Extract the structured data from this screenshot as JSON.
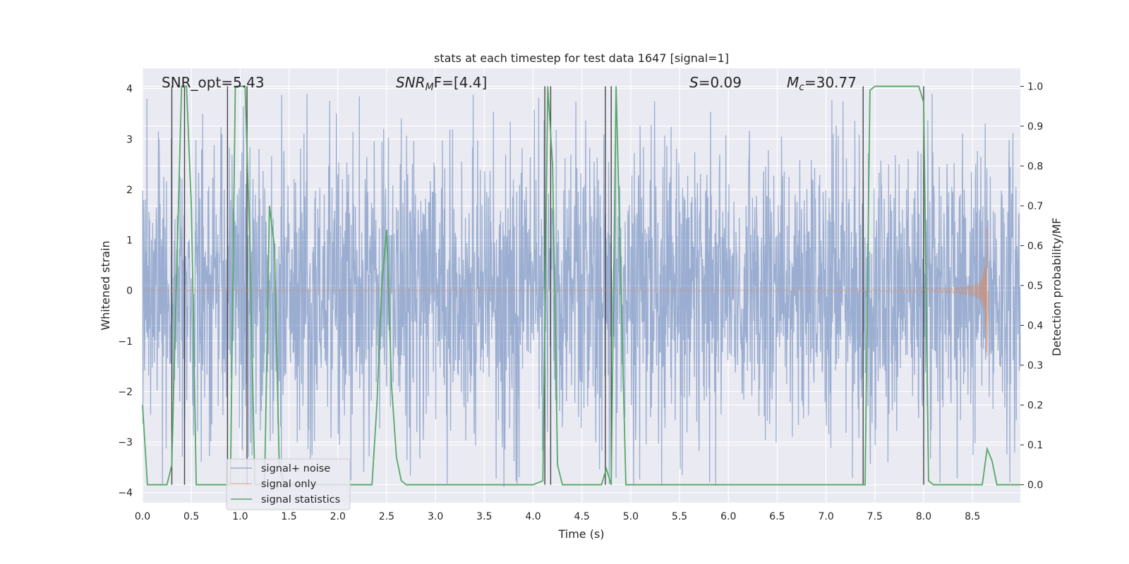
{
  "chart_data": {
    "type": "line",
    "title": "stats at each timestep for test data 1647 [signal=1]",
    "xlabel": "Time (s)",
    "ylabel": "Whitened strain",
    "y2label": "Detection probability/MF",
    "xlim": [
      0.0,
      8.99
    ],
    "ylim": [
      -4.2,
      4.4
    ],
    "y2lim": [
      -0.045,
      1.045
    ],
    "x_ticks": [
      "0.0",
      "0.5",
      "1.0",
      "1.5",
      "2.0",
      "2.5",
      "3.0",
      "3.5",
      "4.0",
      "4.5",
      "5.0",
      "5.5",
      "6.0",
      "6.5",
      "7.0",
      "7.5",
      "8.0",
      "8.5"
    ],
    "x_tick_values": [
      0,
      0.5,
      1,
      1.5,
      2,
      2.5,
      3,
      3.5,
      4,
      4.5,
      5,
      5.5,
      6,
      6.5,
      7,
      7.5,
      8,
      8.5
    ],
    "y_ticks": [
      "−4",
      "−3",
      "−2",
      "−1",
      "0",
      "1",
      "2",
      "3",
      "4"
    ],
    "y_tick_values": [
      -4,
      -3,
      -2,
      -1,
      0,
      1,
      2,
      3,
      4
    ],
    "y2_ticks": [
      "0.0",
      "0.1",
      "0.2",
      "0.3",
      "0.4",
      "0.5",
      "0.6",
      "0.7",
      "0.8",
      "0.9",
      "1.0"
    ],
    "y2_tick_values": [
      0,
      0.1,
      0.2,
      0.3,
      0.4,
      0.5,
      0.6,
      0.7,
      0.8,
      0.9,
      1.0
    ],
    "grid": true,
    "legend_location": "bottom-left",
    "legend": [
      "signal+ noise",
      "signal only",
      "signal statistics"
    ],
    "annotations": {
      "snr_opt": "SNR_opt=5.43",
      "snr_mf_prefix": "SNR",
      "snr_mf_sub": "M",
      "snr_mf_suffix": "F=[4.4]",
      "s_prefix": "S",
      "s_suffix": "=0.09",
      "mc_prefix": "M",
      "mc_sub": "c",
      "mc_suffix": "=30.77"
    },
    "series": [
      {
        "name": "signal+ noise",
        "color": "#4c72b0",
        "description": "whitened strain noise, approx. Gaussian sigma 1.0 with peaks up to about 3.9",
        "noise_sigma": 1.0,
        "noise_peak": 3.9
      },
      {
        "name": "signal only",
        "color": "#dd8452",
        "description": "chirp waveform merging near t=8.65s",
        "merger_time": 8.65,
        "peak_amplitude": 1.45,
        "trough_amplitude": -1.3
      },
      {
        "name": "signal statistics",
        "color": "#55a868",
        "axis": "right",
        "x": [
          0.0,
          0.05,
          0.25,
          0.3,
          0.33,
          0.4,
          0.45,
          0.5,
          0.55,
          0.75,
          0.9,
          0.95,
          1.0,
          1.05,
          1.1,
          1.15,
          1.25,
          1.3,
          1.35,
          1.4,
          1.45,
          1.5,
          1.55,
          2.0,
          2.35,
          2.4,
          2.45,
          2.5,
          2.55,
          2.6,
          2.65,
          2.7,
          2.8,
          3.0,
          4.0,
          4.1,
          4.15,
          4.2,
          4.25,
          4.3,
          4.35,
          4.5,
          4.7,
          4.75,
          4.8,
          4.85,
          4.9,
          4.95,
          7.35,
          7.4,
          7.45,
          7.5,
          7.8,
          7.95,
          8.0,
          8.05,
          8.1,
          8.5,
          8.6,
          8.65,
          8.7,
          8.75,
          8.99
        ],
        "y": [
          0.2,
          0.0,
          0.0,
          0.05,
          0.35,
          1.0,
          1.0,
          0.7,
          0.0,
          0.0,
          0.0,
          1.0,
          1.0,
          1.0,
          0.6,
          0.0,
          0.0,
          0.7,
          0.6,
          0.05,
          0.0,
          0.0,
          0.0,
          0.0,
          0.0,
          0.2,
          0.5,
          0.64,
          0.25,
          0.07,
          0.01,
          0.0,
          0.0,
          0.0,
          0.0,
          0.01,
          1.0,
          0.8,
          0.05,
          0.0,
          0.0,
          0.0,
          0.0,
          0.04,
          0.0,
          1.0,
          0.5,
          0.0,
          0.0,
          0.0,
          0.99,
          1.0,
          1.0,
          1.0,
          0.96,
          0.01,
          0.0,
          0.0,
          0.0,
          0.09,
          0.06,
          0.0,
          0.0
        ]
      }
    ],
    "vertical_lines": [
      0.3,
      0.43,
      0.87,
      1.07,
      4.12,
      4.18,
      4.74,
      4.8,
      7.38,
      8.0
    ]
  }
}
